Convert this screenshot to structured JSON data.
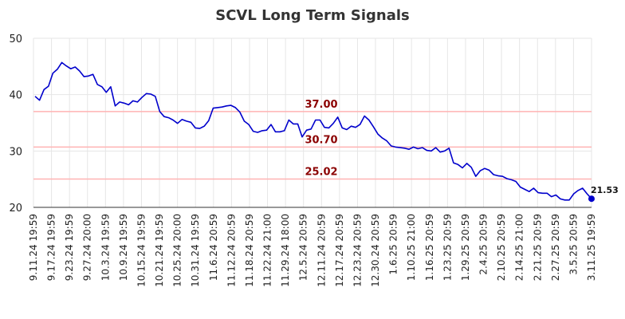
{
  "chart_data": {
    "type": "line",
    "title": "SCVL Long Term Signals",
    "xlabel": "",
    "ylabel": "",
    "ylim": [
      20,
      50
    ],
    "yticks": [
      20,
      30,
      40,
      50
    ],
    "grid": true,
    "x_tick_labels": [
      "9.11.24 19:59",
      "9.17.24 19:59",
      "9.23.24 19:59",
      "9.27.24 20:00",
      "10.3.24 19:59",
      "10.9.24 19:59",
      "10.15.24 19:59",
      "10.21.24 19:59",
      "10.25.24 20:00",
      "10.31.24 19:59",
      "11.6.24 20:59",
      "11.12.24 20:59",
      "11.18.24 20:59",
      "11.22.24 21:00",
      "11.29.24 18:00",
      "12.5.24 20:59",
      "12.11.24 20:59",
      "12.17.24 20:59",
      "12.23.24 20:59",
      "12.30.24 20:59",
      "1.6.25 20:59",
      "1.10.25 21:00",
      "1.16.25 20:59",
      "1.23.25 20:59",
      "1.29.25 20:59",
      "2.4.25 20:59",
      "2.10.25 20:59",
      "2.14.25 21:00",
      "2.21.25 20:59",
      "2.27.25 20:59",
      "3.5.25 20:59",
      "3.11.25 19:59"
    ],
    "reference_lines": [
      {
        "value": 37.0,
        "label": "37.00"
      },
      {
        "value": 30.7,
        "label": "30.70"
      },
      {
        "value": 25.02,
        "label": "25.02"
      }
    ],
    "series": [
      {
        "values": [
          39.7,
          39.0,
          40.9,
          41.5,
          43.8,
          44.5,
          45.7,
          45.1,
          44.6,
          44.9,
          44.2,
          43.2,
          43.3,
          43.6,
          41.8,
          41.4,
          40.4,
          41.4,
          38.0,
          38.7,
          38.5,
          38.2,
          38.9,
          38.7,
          39.5,
          40.2,
          40.1,
          39.7,
          37.0,
          36.1,
          35.9,
          35.5,
          34.9,
          35.6,
          35.3,
          35.1,
          34.1,
          34.0,
          34.4,
          35.4,
          37.6,
          37.7,
          37.8,
          38.0,
          38.1,
          37.7,
          36.9,
          35.3,
          34.7,
          33.5,
          33.3,
          33.6,
          33.7,
          34.7,
          33.4,
          33.4,
          33.6,
          35.5,
          34.8,
          34.8,
          32.5,
          33.7,
          33.9,
          35.5,
          35.5,
          34.2,
          34.1,
          34.9,
          36.0,
          34.1,
          33.8,
          34.4,
          34.2,
          34.7,
          36.2,
          35.5,
          34.3,
          33.0,
          32.3,
          31.8,
          30.9,
          30.7,
          30.6,
          30.5,
          30.3,
          30.7,
          30.4,
          30.6,
          30.1,
          30.0,
          30.6,
          29.8,
          30.0,
          30.5,
          27.9,
          27.6,
          27.0,
          27.8,
          27.1,
          25.5,
          26.5,
          26.9,
          26.6,
          25.8,
          25.6,
          25.5,
          25.1,
          24.9,
          24.6,
          23.6,
          23.2,
          22.8,
          23.4,
          22.6,
          22.5,
          22.5,
          21.9,
          22.2,
          21.5,
          21.3,
          21.3,
          22.4,
          23.0,
          23.4,
          22.4,
          21.53
        ],
        "color": "#0000cc",
        "last_value_label": "21.53"
      }
    ]
  },
  "colors": {
    "line": "#0000cc",
    "ref_line": "#ffb3b3",
    "ref_label": "#8b0000",
    "grid": "#e6e6e6",
    "axis": "#333333"
  }
}
